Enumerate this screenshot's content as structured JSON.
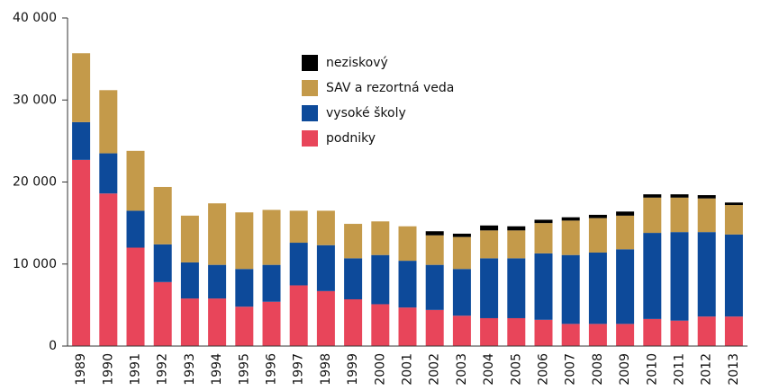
{
  "chart_data": {
    "type": "stacked_bar",
    "categories": [
      "1989",
      "1990",
      "1991",
      "1992",
      "1993",
      "1994",
      "1995",
      "1996",
      "1997",
      "1998",
      "1999",
      "2000",
      "2001",
      "2002",
      "2003",
      "2004",
      "2005",
      "2006",
      "2007",
      "2008",
      "2009",
      "2010",
      "2011",
      "2012",
      "2013"
    ],
    "series": [
      {
        "name": "podniky",
        "color": "#e8455a",
        "values": [
          22700,
          18600,
          12000,
          7800,
          5800,
          5800,
          4800,
          5400,
          7400,
          6700,
          5700,
          5100,
          4700,
          4400,
          3700,
          3400,
          3400,
          3200,
          2700,
          2700,
          2700,
          3300,
          3100,
          3600,
          3600
        ]
      },
      {
        "name": "vysoké školy",
        "color": "#0d4a9a",
        "values": [
          4600,
          4900,
          4500,
          4600,
          4400,
          4100,
          4600,
          4500,
          5200,
          5600,
          5000,
          6000,
          5700,
          5500,
          5700,
          7300,
          7300,
          8100,
          8400,
          8700,
          9100,
          10500,
          10800,
          10300,
          10000
        ]
      },
      {
        "name": "SAV a rezortná veda",
        "color": "#c49a4a",
        "values": [
          8400,
          7700,
          7300,
          7000,
          5700,
          7500,
          6900,
          6700,
          3900,
          4200,
          4200,
          4100,
          4200,
          3600,
          3900,
          3400,
          3400,
          3700,
          4200,
          4200,
          4100,
          4300,
          4200,
          4100,
          3600
        ]
      },
      {
        "name": "neziskový",
        "color": "#000000",
        "values": [
          0,
          0,
          0,
          0,
          0,
          0,
          0,
          0,
          0,
          0,
          0,
          0,
          0,
          500,
          400,
          600,
          500,
          400,
          400,
          400,
          500,
          400,
          400,
          400,
          300
        ]
      }
    ],
    "ylim": [
      0,
      40000
    ],
    "yticks": [
      0,
      {
        "value": 10000,
        "label": "10 000"
      },
      {
        "value": 20000,
        "label": "20 000"
      },
      {
        "value": 30000,
        "label": "30 000"
      },
      {
        "value": 40000,
        "label": "40 000"
      }
    ],
    "grid": false
  }
}
